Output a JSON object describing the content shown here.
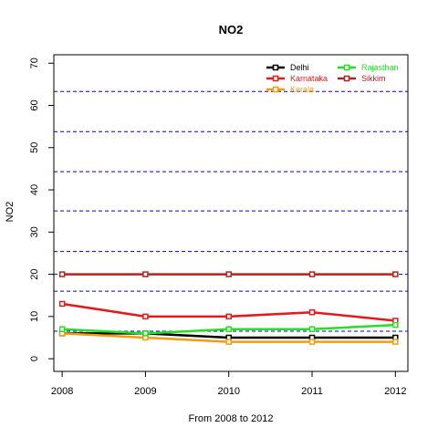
{
  "chart_data": {
    "type": "line",
    "title": "NO2",
    "xlabel": "From 2008 to 2012",
    "ylabel": "NO2",
    "x": [
      2008,
      2009,
      2010,
      2011,
      2012
    ],
    "xlim": [
      2007.9,
      2012.15
    ],
    "ylim": [
      -3,
      72
    ],
    "x_ticks": [
      "2008",
      "2009",
      "2010",
      "2011",
      "2012"
    ],
    "y_ticks": [
      "0",
      "10",
      "20",
      "30",
      "40",
      "50",
      "60",
      "70"
    ],
    "y_tick_values": [
      0,
      10,
      20,
      30,
      40,
      50,
      60,
      70
    ],
    "grid": false,
    "legend_position": "top-right",
    "reference_lines": [
      6.5,
      16,
      20,
      25.4,
      35,
      44.3,
      53.8,
      63.3
    ],
    "series": [
      {
        "name": "Delhi",
        "color": "#000000",
        "values": [
          6,
          6,
          5,
          5,
          5
        ]
      },
      {
        "name": "Karnataka",
        "color": "#e31a1c",
        "values": [
          13,
          10,
          10,
          11,
          9
        ]
      },
      {
        "name": "Kerala",
        "color": "#f39c12",
        "values": [
          6,
          5,
          4,
          4,
          4
        ]
      },
      {
        "name": "Rajasthan",
        "color": "#22e022",
        "values": [
          7,
          6,
          7,
          7,
          8
        ]
      },
      {
        "name": "Sikkim",
        "color": "#b22222",
        "values": [
          20,
          20,
          20,
          20,
          20
        ]
      }
    ],
    "reference_line_color": "#0000cc"
  }
}
